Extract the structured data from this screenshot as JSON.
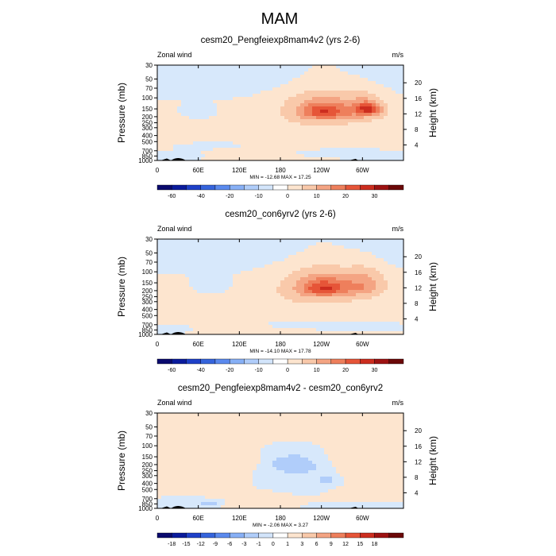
{
  "figure": {
    "title": "MAM"
  },
  "chart_data": [
    {
      "type": "heatmap",
      "title": "cesm20_Pengfeiexp8mam4v2 (yrs 2-6)",
      "left_label": "Zonal wind",
      "right_label": "m/s",
      "ylabel": "Pressure (mb)",
      "y2label": "Height (km)",
      "stats": "MIN = -12.68  MAX =  17.25",
      "x_ticks": [
        "0",
        "60E",
        "120E",
        "180",
        "120W",
        "60W"
      ],
      "y_ticks": [
        "30",
        "50",
        "70",
        "100",
        "150",
        "200",
        "250",
        "300",
        "400",
        "500",
        "700",
        "850",
        "1000"
      ],
      "y2_ticks": [
        "20",
        "16",
        "12",
        "8",
        "4"
      ],
      "colorbar_labels": [
        "-60",
        "-40",
        "-20",
        "-10",
        "0",
        "10",
        "20",
        "30"
      ],
      "colorbar_levels": [
        -70,
        -60,
        -50,
        -40,
        -30,
        -20,
        -15,
        -10,
        -5,
        0,
        5,
        10,
        15,
        20,
        25,
        30,
        35
      ],
      "blobs": [
        {
          "lon": 180,
          "lev": 40,
          "w": 460,
          "h": 60,
          "v": -3
        },
        {
          "lon": 180,
          "lev": 330,
          "w": 460,
          "h": 200,
          "v": 3
        },
        {
          "lon": 240,
          "lev": 150,
          "w": 90,
          "h": 150,
          "v": 10
        },
        {
          "lon": 245,
          "lev": 165,
          "w": 45,
          "h": 70,
          "v": 15
        },
        {
          "lon": 305,
          "lev": 150,
          "w": 45,
          "h": 95,
          "v": 10
        },
        {
          "lon": 308,
          "lev": 150,
          "w": 22,
          "h": 45,
          "v": 15
        },
        {
          "lon": 60,
          "lev": 170,
          "w": 28,
          "h": 55,
          "v": -5
        },
        {
          "lon": 150,
          "lev": 760,
          "w": 60,
          "h": 150,
          "v": 3
        },
        {
          "lon": 250,
          "lev": 770,
          "w": 100,
          "h": 80,
          "v": -1
        },
        {
          "lon": 30,
          "lev": 820,
          "w": 35,
          "h": 90,
          "v": -1
        },
        {
          "lon": 80,
          "lev": 560,
          "w": 50,
          "h": 100,
          "v": -1
        }
      ]
    },
    {
      "type": "heatmap",
      "title": "cesm20_con6yrv2 (yrs 2-6)",
      "left_label": "Zonal wind",
      "right_label": "m/s",
      "ylabel": "Pressure (mb)",
      "y2label": "Height (km)",
      "stats": "MIN = -14.10  MAX =  17.78",
      "x_ticks": [
        "0",
        "60E",
        "120E",
        "180",
        "120W",
        "60W"
      ],
      "y_ticks": [
        "30",
        "50",
        "70",
        "100",
        "150",
        "200",
        "250",
        "300",
        "400",
        "500",
        "700",
        "850",
        "1000"
      ],
      "y2_ticks": [
        "20",
        "16",
        "12",
        "8",
        "4"
      ],
      "colorbar_labels": [
        "-60",
        "-40",
        "-20",
        "-10",
        "0",
        "10",
        "20",
        "30"
      ],
      "colorbar_levels": [
        -70,
        -60,
        -50,
        -40,
        -30,
        -20,
        -15,
        -10,
        -5,
        0,
        5,
        10,
        15,
        20,
        25,
        30,
        35
      ],
      "blobs": [
        {
          "lon": 180,
          "lev": 40,
          "w": 460,
          "h": 60,
          "v": -3
        },
        {
          "lon": 180,
          "lev": 330,
          "w": 460,
          "h": 200,
          "v": 3
        },
        {
          "lon": 240,
          "lev": 170,
          "w": 90,
          "h": 170,
          "v": 10
        },
        {
          "lon": 245,
          "lev": 180,
          "w": 48,
          "h": 80,
          "v": 15
        },
        {
          "lon": 305,
          "lev": 160,
          "w": 42,
          "h": 110,
          "v": 10
        },
        {
          "lon": 80,
          "lev": 160,
          "w": 32,
          "h": 80,
          "v": -5
        },
        {
          "lon": 220,
          "lev": 720,
          "w": 110,
          "h": 60,
          "v": -1
        },
        {
          "lon": 110,
          "lev": 780,
          "w": 60,
          "h": 120,
          "v": 3
        },
        {
          "lon": 30,
          "lev": 800,
          "w": 30,
          "h": 90,
          "v": -1
        }
      ]
    },
    {
      "type": "heatmap",
      "title": "cesm20_Pengfeiexp8mam4v2 - cesm20_con6yrv2",
      "left_label": "Zonal wind",
      "right_label": "m/s",
      "ylabel": "Pressure (mb)",
      "y2label": "Height (km)",
      "stats": "MIN =  -2.06  MAX =   3.27",
      "x_ticks": [
        "0",
        "60E",
        "120E",
        "180",
        "120W",
        "60W"
      ],
      "y_ticks": [
        "30",
        "50",
        "70",
        "100",
        "150",
        "200",
        "250",
        "300",
        "400",
        "500",
        "700",
        "850",
        "1000"
      ],
      "y2_ticks": [
        "20",
        "16",
        "12",
        "8",
        "4"
      ],
      "colorbar_labels": [
        "-18",
        "-15",
        "-12",
        "-9",
        "-6",
        "-3",
        "-1",
        "0",
        "1",
        "3",
        "6",
        "9",
        "12",
        "15",
        "18"
      ],
      "colorbar_levels": [
        -21,
        -18,
        -15,
        -12,
        -9,
        -6,
        -3,
        -1,
        0,
        1,
        3,
        6,
        9,
        12,
        15,
        18,
        21
      ],
      "blobs": [
        {
          "lon": 180,
          "lev": 40,
          "w": 460,
          "h": 70,
          "v": 0.5
        },
        {
          "lon": 50,
          "lev": 330,
          "w": 110,
          "h": 300,
          "v": 0.5
        },
        {
          "lon": 300,
          "lev": 300,
          "w": 80,
          "h": 300,
          "v": 1.5
        },
        {
          "lon": 115,
          "lev": 180,
          "w": 40,
          "h": 90,
          "v": 1.5
        },
        {
          "lon": 210,
          "lev": 300,
          "w": 90,
          "h": 300,
          "v": -0.5
        },
        {
          "lon": 200,
          "lev": 200,
          "w": 55,
          "h": 100,
          "v": -1.5
        },
        {
          "lon": 255,
          "lev": 350,
          "w": 40,
          "h": 150,
          "v": -1.5
        },
        {
          "lon": 130,
          "lev": 650,
          "w": 70,
          "h": 150,
          "v": 0.5
        },
        {
          "lon": 150,
          "lev": 820,
          "w": 45,
          "h": 150,
          "v": 1.5
        },
        {
          "lon": 60,
          "lev": 750,
          "w": 60,
          "h": 120,
          "v": -0.5
        },
        {
          "lon": 75,
          "lev": 830,
          "w": 22,
          "h": 80,
          "v": -1.5
        },
        {
          "lon": 300,
          "lev": 900,
          "w": 70,
          "h": 100,
          "v": -0.5
        }
      ]
    }
  ],
  "colors": {
    "palette": [
      "#0a0a6e",
      "#0a1b9c",
      "#1e40c8",
      "#3564dc",
      "#5b8aee",
      "#87b0f6",
      "#b0cdfa",
      "#d3e5fb",
      "#ffffff",
      "#fde5cf",
      "#f9c9aa",
      "#f4a483",
      "#ee7f5c",
      "#e65538",
      "#cc2d1f",
      "#9d1212",
      "#6b0808"
    ],
    "zero_band": "#d7e8fb",
    "terrain": "#000000"
  }
}
